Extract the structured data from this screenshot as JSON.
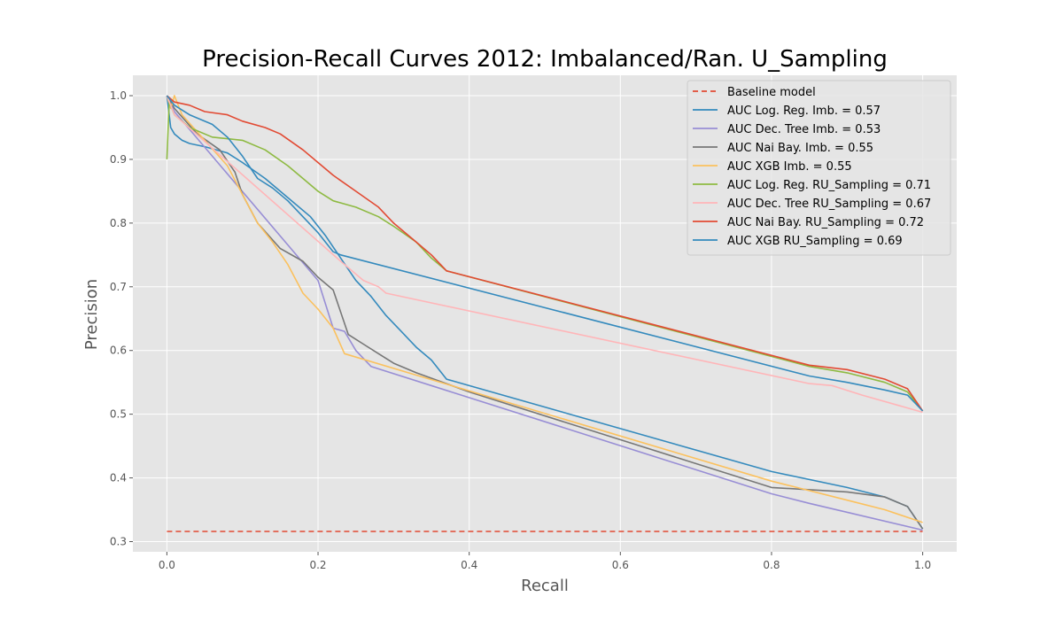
{
  "chart_data": {
    "type": "line",
    "title": "Precision-Recall Curves 2012: Imbalanced/Ran. U_Sampling",
    "xlabel": "Recall",
    "ylabel": "Precision",
    "xlim": [
      -0.045,
      1.045
    ],
    "ylim": [
      0.284,
      1.032
    ],
    "xticks": [
      0.0,
      0.2,
      0.4,
      0.6,
      0.8,
      1.0
    ],
    "xtick_labels": [
      "0.0",
      "0.2",
      "0.4",
      "0.6",
      "0.8",
      "1.0"
    ],
    "yticks": [
      0.3,
      0.4,
      0.5,
      0.6,
      0.7,
      0.8,
      0.9,
      1.0
    ],
    "ytick_labels": [
      "0.3",
      "0.4",
      "0.5",
      "0.6",
      "0.7",
      "0.8",
      "0.9",
      "1.0"
    ],
    "grid": true,
    "legend_position": "top-right",
    "background": "#e5e5e5",
    "series": [
      {
        "name": "Baseline model",
        "color": "#e24a33",
        "dashed": true,
        "points": [
          [
            0.0,
            0.316
          ],
          [
            1.0,
            0.316
          ]
        ]
      },
      {
        "name": "AUC Log. Reg. Imb. = 0.57",
        "color": "#348abd",
        "dashed": false,
        "points": [
          [
            0.0,
            1.0
          ],
          [
            0.005,
            0.95
          ],
          [
            0.01,
            0.94
          ],
          [
            0.02,
            0.93
          ],
          [
            0.03,
            0.925
          ],
          [
            0.05,
            0.92
          ],
          [
            0.08,
            0.91
          ],
          [
            0.1,
            0.895
          ],
          [
            0.13,
            0.87
          ],
          [
            0.16,
            0.84
          ],
          [
            0.19,
            0.81
          ],
          [
            0.21,
            0.78
          ],
          [
            0.23,
            0.745
          ],
          [
            0.25,
            0.71
          ],
          [
            0.27,
            0.685
          ],
          [
            0.29,
            0.655
          ],
          [
            0.31,
            0.63
          ],
          [
            0.33,
            0.605
          ],
          [
            0.35,
            0.585
          ],
          [
            0.37,
            0.555
          ],
          [
            0.8,
            0.41
          ],
          [
            0.9,
            0.385
          ],
          [
            0.95,
            0.37
          ],
          [
            0.98,
            0.355
          ],
          [
            1.0,
            0.32
          ]
        ]
      },
      {
        "name": "AUC Dec. Tree Imb. = 0.53",
        "color": "#988ed5",
        "dashed": false,
        "points": [
          [
            0.0,
            1.0
          ],
          [
            0.01,
            0.975
          ],
          [
            0.2,
            0.71
          ],
          [
            0.22,
            0.635
          ],
          [
            0.235,
            0.63
          ],
          [
            0.25,
            0.6
          ],
          [
            0.27,
            0.575
          ],
          [
            0.8,
            0.375
          ],
          [
            0.85,
            0.36
          ],
          [
            1.0,
            0.318
          ]
        ]
      },
      {
        "name": "AUC Nai Bay. Imb. = 0.55",
        "color": "#777777",
        "dashed": false,
        "points": [
          [
            0.0,
            1.0
          ],
          [
            0.01,
            0.98
          ],
          [
            0.04,
            0.94
          ],
          [
            0.07,
            0.915
          ],
          [
            0.09,
            0.88
          ],
          [
            0.1,
            0.845
          ],
          [
            0.12,
            0.8
          ],
          [
            0.15,
            0.76
          ],
          [
            0.18,
            0.74
          ],
          [
            0.2,
            0.715
          ],
          [
            0.22,
            0.695
          ],
          [
            0.24,
            0.625
          ],
          [
            0.26,
            0.61
          ],
          [
            0.28,
            0.595
          ],
          [
            0.3,
            0.58
          ],
          [
            0.33,
            0.565
          ],
          [
            0.4,
            0.535
          ],
          [
            0.8,
            0.385
          ],
          [
            0.9,
            0.378
          ],
          [
            0.95,
            0.37
          ],
          [
            0.98,
            0.355
          ],
          [
            1.0,
            0.32
          ]
        ]
      },
      {
        "name": "AUC XGB Imb. = 0.55",
        "color": "#fbc15e",
        "dashed": false,
        "points": [
          [
            0.0,
            1.0
          ],
          [
            0.005,
            0.98
          ],
          [
            0.01,
            1.0
          ],
          [
            0.02,
            0.97
          ],
          [
            0.05,
            0.93
          ],
          [
            0.08,
            0.89
          ],
          [
            0.1,
            0.845
          ],
          [
            0.12,
            0.8
          ],
          [
            0.14,
            0.77
          ],
          [
            0.16,
            0.735
          ],
          [
            0.18,
            0.69
          ],
          [
            0.2,
            0.665
          ],
          [
            0.22,
            0.635
          ],
          [
            0.235,
            0.595
          ],
          [
            0.8,
            0.395
          ],
          [
            0.9,
            0.365
          ],
          [
            0.95,
            0.35
          ],
          [
            1.0,
            0.33
          ]
        ]
      },
      {
        "name": "AUC Log. Reg. RU_Sampling = 0.71",
        "color": "#8eba42",
        "dashed": false,
        "points": [
          [
            0.0,
            0.9
          ],
          [
            0.003,
            0.99
          ],
          [
            0.01,
            0.97
          ],
          [
            0.03,
            0.95
          ],
          [
            0.06,
            0.935
          ],
          [
            0.1,
            0.93
          ],
          [
            0.13,
            0.915
          ],
          [
            0.16,
            0.89
          ],
          [
            0.18,
            0.87
          ],
          [
            0.2,
            0.85
          ],
          [
            0.22,
            0.835
          ],
          [
            0.25,
            0.825
          ],
          [
            0.28,
            0.81
          ],
          [
            0.3,
            0.795
          ],
          [
            0.33,
            0.77
          ],
          [
            0.35,
            0.745
          ],
          [
            0.37,
            0.725
          ],
          [
            0.85,
            0.575
          ],
          [
            0.9,
            0.565
          ],
          [
            0.95,
            0.55
          ],
          [
            0.98,
            0.535
          ],
          [
            1.0,
            0.505
          ]
        ]
      },
      {
        "name": "AUC Dec. Tree RU_Sampling = 0.67",
        "color": "#ffb5b8",
        "dashed": false,
        "points": [
          [
            0.0,
            1.0
          ],
          [
            0.01,
            0.97
          ],
          [
            0.23,
            0.74
          ],
          [
            0.26,
            0.71
          ],
          [
            0.28,
            0.7
          ],
          [
            0.29,
            0.69
          ],
          [
            0.85,
            0.548
          ],
          [
            0.88,
            0.545
          ],
          [
            0.92,
            0.53
          ],
          [
            1.0,
            0.503
          ]
        ]
      },
      {
        "name": "AUC Nai Bay. RU_Sampling = 0.72",
        "color": "#e24a33",
        "dashed": false,
        "points": [
          [
            0.0,
            1.0
          ],
          [
            0.01,
            0.99
          ],
          [
            0.03,
            0.985
          ],
          [
            0.05,
            0.975
          ],
          [
            0.08,
            0.97
          ],
          [
            0.1,
            0.96
          ],
          [
            0.13,
            0.95
          ],
          [
            0.15,
            0.94
          ],
          [
            0.18,
            0.915
          ],
          [
            0.2,
            0.895
          ],
          [
            0.22,
            0.875
          ],
          [
            0.25,
            0.85
          ],
          [
            0.28,
            0.825
          ],
          [
            0.3,
            0.8
          ],
          [
            0.33,
            0.77
          ],
          [
            0.35,
            0.75
          ],
          [
            0.37,
            0.725
          ],
          [
            0.85,
            0.577
          ],
          [
            0.9,
            0.57
          ],
          [
            0.95,
            0.555
          ],
          [
            0.98,
            0.54
          ],
          [
            1.0,
            0.505
          ]
        ]
      },
      {
        "name": "AUC XGB RU_Sampling = 0.69",
        "color": "#348abd",
        "dashed": false,
        "points": [
          [
            0.0,
            1.0
          ],
          [
            0.01,
            0.985
          ],
          [
            0.03,
            0.97
          ],
          [
            0.06,
            0.955
          ],
          [
            0.08,
            0.935
          ],
          [
            0.1,
            0.905
          ],
          [
            0.12,
            0.87
          ],
          [
            0.14,
            0.855
          ],
          [
            0.16,
            0.835
          ],
          [
            0.18,
            0.81
          ],
          [
            0.2,
            0.785
          ],
          [
            0.22,
            0.755
          ],
          [
            0.23,
            0.75
          ],
          [
            0.85,
            0.56
          ],
          [
            0.9,
            0.55
          ],
          [
            0.95,
            0.538
          ],
          [
            0.98,
            0.53
          ],
          [
            1.0,
            0.505
          ]
        ]
      }
    ]
  }
}
